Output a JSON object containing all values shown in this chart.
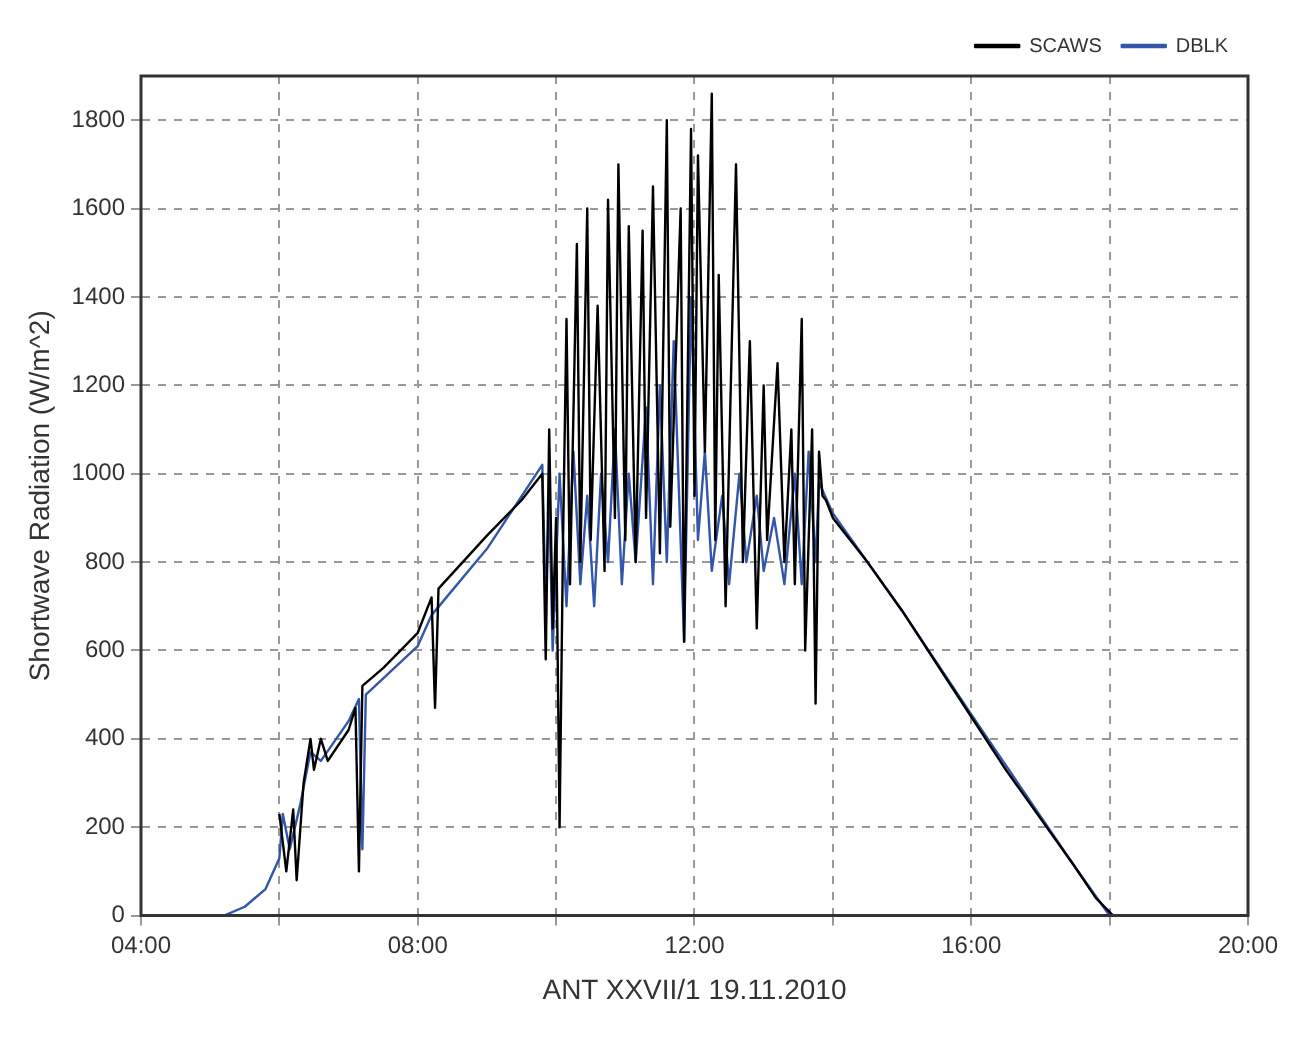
{
  "chart_data": {
    "type": "line",
    "xlabel": "ANT XXVII/1 19.11.2010",
    "ylabel": "Shortwave Radiation (W/m^2)",
    "xlim": [
      4,
      20
    ],
    "xticks": [
      {
        "value": 4,
        "label": "04:00"
      },
      {
        "value": 6,
        "label": null
      },
      {
        "value": 8,
        "label": "08:00"
      },
      {
        "value": 10,
        "label": null
      },
      {
        "value": 12,
        "label": "12:00"
      },
      {
        "value": 14,
        "label": null
      },
      {
        "value": 16,
        "label": "16:00"
      },
      {
        "value": 18,
        "label": null
      },
      {
        "value": 20,
        "label": "20:00"
      }
    ],
    "ylim": [
      0,
      1900
    ],
    "yticks": [
      0,
      200,
      400,
      600,
      800,
      1000,
      1200,
      1400,
      1600,
      1800
    ],
    "grid": true,
    "legend": "top right",
    "marker": "none",
    "line_style": "solid",
    "series": [
      {
        "name": "SCAWS",
        "color": "#000000",
        "x": [
          6.0,
          6.1,
          6.2,
          6.25,
          6.35,
          6.45,
          6.5,
          6.6,
          6.7,
          7.0,
          7.1,
          7.15,
          7.2,
          7.5,
          8.0,
          8.2,
          8.25,
          8.3,
          9.0,
          9.5,
          9.8,
          9.85,
          9.9,
          9.95,
          10.0,
          10.05,
          10.1,
          10.15,
          10.2,
          10.3,
          10.35,
          10.45,
          10.5,
          10.6,
          10.7,
          10.75,
          10.85,
          10.9,
          11.0,
          11.05,
          11.15,
          11.25,
          11.3,
          11.4,
          11.5,
          11.6,
          11.65,
          11.8,
          11.85,
          11.95,
          12.0,
          12.05,
          12.15,
          12.25,
          12.3,
          12.35,
          12.45,
          12.6,
          12.7,
          12.8,
          12.9,
          13.0,
          13.05,
          13.2,
          13.3,
          13.4,
          13.45,
          13.55,
          13.6,
          13.7,
          13.75,
          13.8,
          13.85,
          13.9,
          14.0,
          14.5,
          15.0,
          15.5,
          16.0,
          16.5,
          17.0,
          17.5,
          17.8,
          18.05
        ],
        "values": [
          230,
          100,
          240,
          80,
          300,
          400,
          330,
          400,
          350,
          420,
          470,
          100,
          520,
          560,
          640,
          720,
          470,
          740,
          860,
          940,
          1000,
          580,
          1100,
          650,
          900,
          200,
          850,
          1350,
          750,
          1520,
          800,
          1600,
          850,
          1380,
          780,
          1620,
          900,
          1700,
          850,
          1560,
          800,
          1550,
          900,
          1650,
          820,
          1800,
          880,
          1600,
          620,
          1780,
          950,
          1720,
          1050,
          1860,
          850,
          1450,
          700,
          1700,
          800,
          1300,
          650,
          1200,
          850,
          1250,
          800,
          1100,
          750,
          1350,
          600,
          1100,
          480,
          1050,
          950,
          940,
          900,
          800,
          690,
          570,
          450,
          330,
          220,
          110,
          40,
          0
        ]
      },
      {
        "name": "DBLK",
        "color": "#3355aa",
        "x": [
          5.2,
          5.5,
          5.8,
          6.0,
          6.05,
          6.15,
          6.3,
          6.45,
          6.6,
          7.0,
          7.15,
          7.2,
          7.25,
          8.0,
          8.2,
          9.0,
          9.8,
          9.85,
          9.9,
          9.95,
          10.05,
          10.15,
          10.25,
          10.35,
          10.45,
          10.55,
          10.65,
          10.75,
          10.85,
          10.95,
          11.05,
          11.15,
          11.3,
          11.4,
          11.5,
          11.6,
          11.7,
          11.85,
          11.95,
          12.05,
          12.15,
          12.25,
          12.4,
          12.5,
          12.65,
          12.75,
          12.9,
          13.0,
          13.15,
          13.3,
          13.45,
          13.55,
          13.65,
          13.75,
          13.8,
          14.0,
          15.0,
          16.0,
          17.0,
          17.5,
          18.0
        ],
        "values": [
          0,
          20,
          60,
          130,
          230,
          150,
          250,
          370,
          350,
          440,
          490,
          150,
          500,
          610,
          680,
          830,
          1020,
          700,
          950,
          600,
          1000,
          700,
          1050,
          750,
          950,
          700,
          1000,
          800,
          1100,
          750,
          1000,
          800,
          1150,
          750,
          1200,
          800,
          1300,
          620,
          1400,
          850,
          1050,
          780,
          950,
          750,
          1000,
          800,
          950,
          780,
          900,
          750,
          1000,
          750,
          1050,
          800,
          980,
          910,
          690,
          455,
          225,
          110,
          0
        ]
      }
    ]
  }
}
